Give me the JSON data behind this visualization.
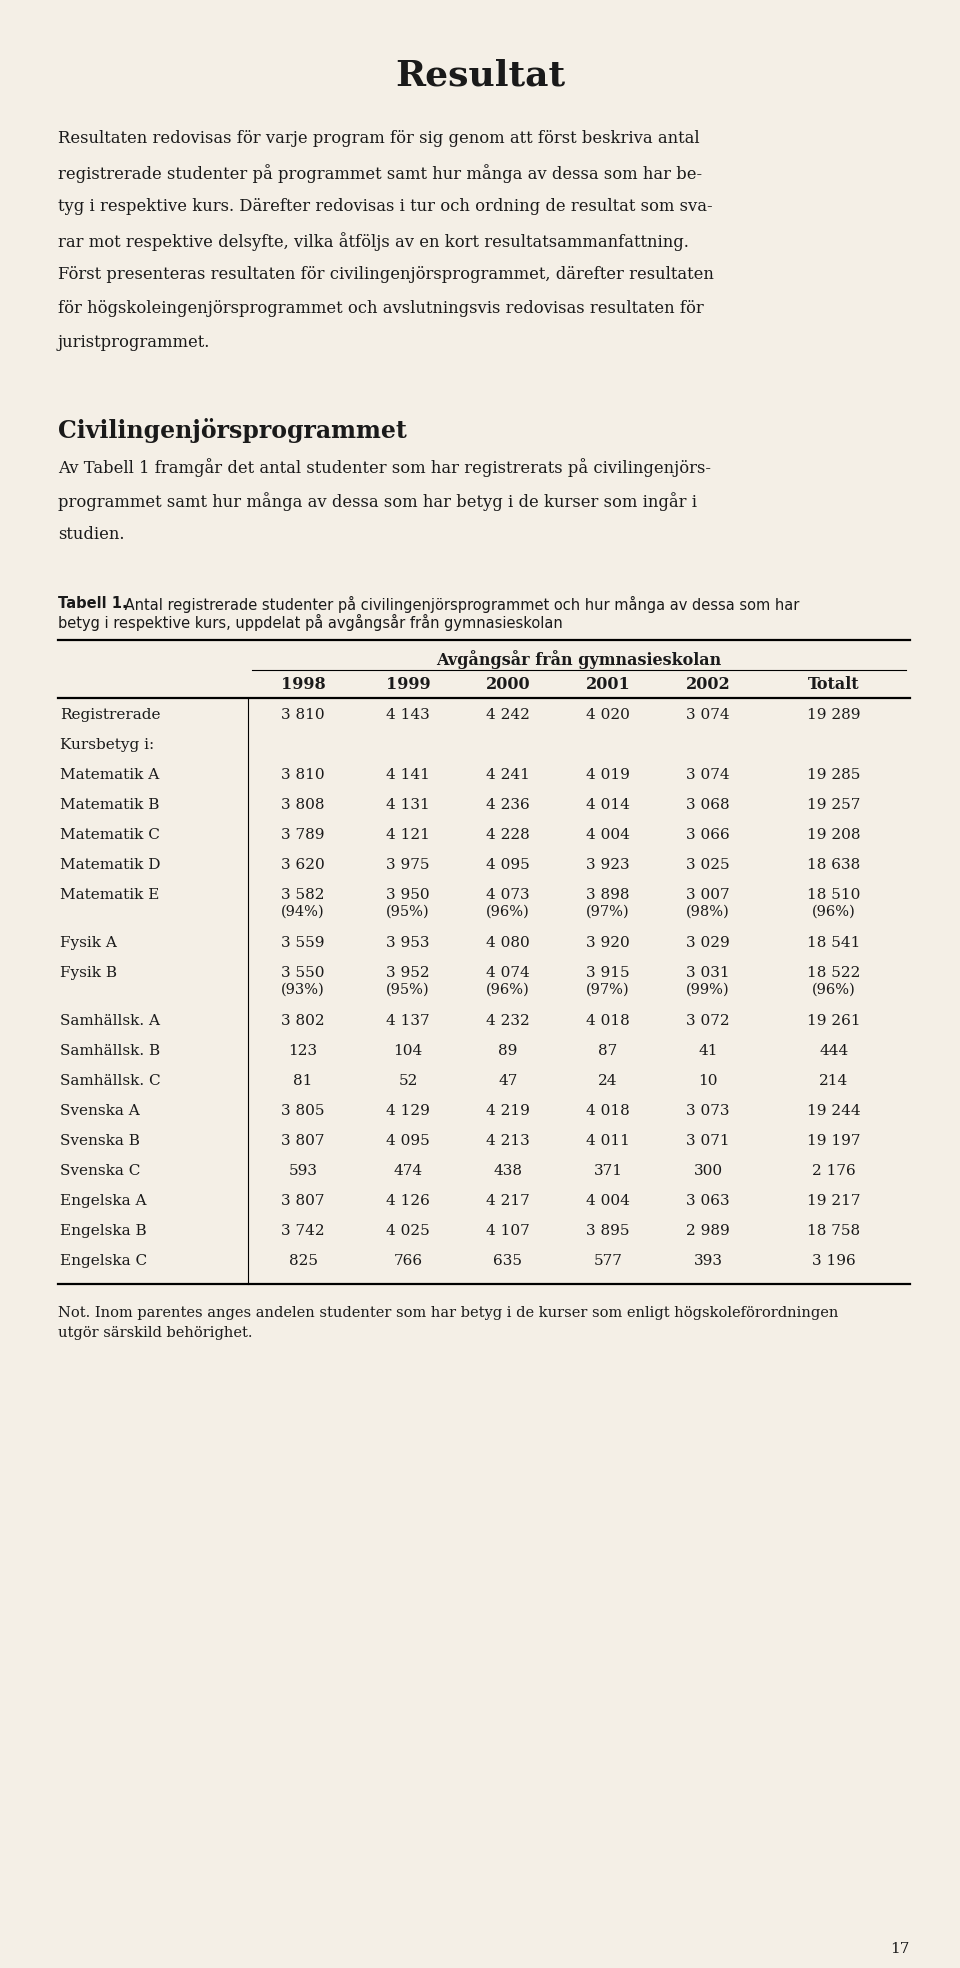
{
  "title": "Resultat",
  "bg_color": "#f4efe6",
  "text_color": "#1a1a1a",
  "p1_lines": [
    "Resultaten redovisas för varje program för sig genom att först beskriva antal",
    "registrerade studenter på programmet samt hur många av dessa som har be-",
    "tyg i respektive kurs. Därefter redovisas i tur och ordning de resultat som sva-",
    "rar mot respektive delsyfte, vilka åtföljs av en kort resultatsammanfattning.",
    "Först presenteras resultaten för civilingenjörsprogrammet, därefter resultaten",
    "för högskoleingenjörsprogrammet och avslutningsvis redovisas resultaten för",
    "juristprogrammet."
  ],
  "section_title": "Civilingenjörsprogrammet",
  "sp_lines": [
    "Av Tabell 1 framgår det antal studenter som har registrerats på civilingenjörs-",
    "programmet samt hur många av dessa som har betyg i de kurser som ingår i",
    "studien."
  ],
  "table_caption_bold": "Tabell 1.",
  "table_caption_lines": [
    " Antal registrerade studenter på civilingenjörsprogrammet och hur många av dessa som har",
    "betyg i respektive kurs, uppdelat på avgångsår från gymnasieskolan"
  ],
  "table_header_merged": "Avgångsår från gymnasieskolan",
  "table_cols": [
    "1998",
    "1999",
    "2000",
    "2001",
    "2002",
    "Totalt"
  ],
  "table_rows": [
    {
      "label": "Registrerade",
      "values": [
        "3 810",
        "4 143",
        "4 242",
        "4 020",
        "3 074",
        "19 289"
      ],
      "sub": null
    },
    {
      "label": "Kursbetyg i:",
      "values": [
        "",
        "",
        "",
        "",
        "",
        ""
      ],
      "sub": null
    },
    {
      "label": "Matematik A",
      "values": [
        "3 810",
        "4 141",
        "4 241",
        "4 019",
        "3 074",
        "19 285"
      ],
      "sub": null
    },
    {
      "label": "Matematik B",
      "values": [
        "3 808",
        "4 131",
        "4 236",
        "4 014",
        "3 068",
        "19 257"
      ],
      "sub": null
    },
    {
      "label": "Matematik C",
      "values": [
        "3 789",
        "4 121",
        "4 228",
        "4 004",
        "3 066",
        "19 208"
      ],
      "sub": null
    },
    {
      "label": "Matematik D",
      "values": [
        "3 620",
        "3 975",
        "4 095",
        "3 923",
        "3 025",
        "18 638"
      ],
      "sub": null
    },
    {
      "label": "Matematik E",
      "values": [
        "3 582",
        "3 950",
        "4 073",
        "3 898",
        "3 007",
        "18 510"
      ],
      "sub": [
        "(94%)",
        "(95%)",
        "(96%)",
        "(97%)",
        "(98%)",
        "(96%)"
      ]
    },
    {
      "label": "Fysik A",
      "values": [
        "3 559",
        "3 953",
        "4 080",
        "3 920",
        "3 029",
        "18 541"
      ],
      "sub": null
    },
    {
      "label": "Fysik B",
      "values": [
        "3 550",
        "3 952",
        "4 074",
        "3 915",
        "3 031",
        "18 522"
      ],
      "sub": [
        "(93%)",
        "(95%)",
        "(96%)",
        "(97%)",
        "(99%)",
        "(96%)"
      ]
    },
    {
      "label": "Samhällsk. A",
      "values": [
        "3 802",
        "4 137",
        "4 232",
        "4 018",
        "3 072",
        "19 261"
      ],
      "sub": null
    },
    {
      "label": "Samhällsk. B",
      "values": [
        "123",
        "104",
        "89",
        "87",
        "41",
        "444"
      ],
      "sub": null
    },
    {
      "label": "Samhällsk. C",
      "values": [
        "81",
        "52",
        "47",
        "24",
        "10",
        "214"
      ],
      "sub": null
    },
    {
      "label": "Svenska A",
      "values": [
        "3 805",
        "4 129",
        "4 219",
        "4 018",
        "3 073",
        "19 244"
      ],
      "sub": null
    },
    {
      "label": "Svenska B",
      "values": [
        "3 807",
        "4 095",
        "4 213",
        "4 011",
        "3 071",
        "19 197"
      ],
      "sub": null
    },
    {
      "label": "Svenska C",
      "values": [
        "593",
        "474",
        "438",
        "371",
        "300",
        "2 176"
      ],
      "sub": null
    },
    {
      "label": "Engelska A",
      "values": [
        "3 807",
        "4 126",
        "4 217",
        "4 004",
        "3 063",
        "19 217"
      ],
      "sub": null
    },
    {
      "label": "Engelska B",
      "values": [
        "3 742",
        "4 025",
        "4 107",
        "3 895",
        "2 989",
        "18 758"
      ],
      "sub": null
    },
    {
      "label": "Engelska C",
      "values": [
        "825",
        "766",
        "635",
        "577",
        "393",
        "3 196"
      ],
      "sub": null
    }
  ],
  "footnote_lines": [
    "Not. Inom parentes anges andelen studenter som har betyg i de kurser som enligt högskoleförordningen",
    "utgör särskild behörighet."
  ],
  "page_number": "17"
}
